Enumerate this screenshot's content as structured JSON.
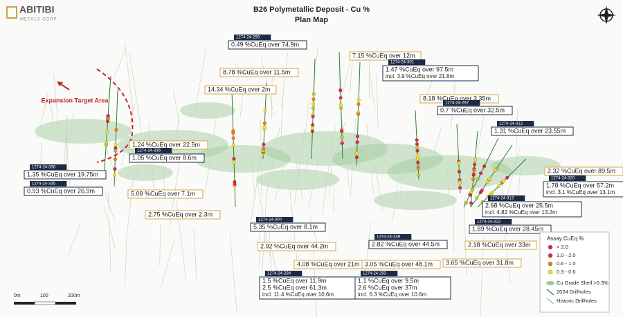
{
  "header": {
    "logo": "ABITIBI",
    "logo_sub": "METALS CORP",
    "title": "B26 Polymetallic Deposit - Cu %",
    "subtitle": "Plan Map"
  },
  "expansion_label": "Expansion Target Area",
  "callouts": [
    {
      "hole": "1274-24-299",
      "lines": [
        "0.49 %CuEq over 74.9m"
      ]
    },
    {
      "lines": [
        "8.78 %CuEq over 11.5m"
      ]
    },
    {
      "lines": [
        "14.34 %CuEq over 2m"
      ]
    },
    {
      "lines": [
        "7.15 %CuEq over 12m"
      ]
    },
    {
      "hole": "1274-24-301",
      "lines": [
        "1.47 %CuEq over 97.5m",
        "incl. 3.9 %CuEq over 21.8m"
      ]
    },
    {
      "lines": [
        "8.18 %CuEq over 3.35m"
      ]
    },
    {
      "hole": "1274-24-297",
      "lines": [
        "0.7 %CuEq over 32.5m"
      ]
    },
    {
      "hole": "1274-24-312",
      "lines": [
        "1.31 %CuEq over 23.55m"
      ]
    },
    {
      "lines": [
        "1.24 %CuEq over 22.5m"
      ]
    },
    {
      "hole": "1274-24-335",
      "lines": [
        "1.05 %CuEq over 8.6m"
      ]
    },
    {
      "hole": "1274-24-336",
      "lines": [
        "1.35 %CuEq over 19.75m"
      ]
    },
    {
      "hole": "1274-24-335",
      "lines": [
        "0.93 %CuEq over 26.9m"
      ]
    },
    {
      "lines": [
        "5.08 %CuEq over 7.1m"
      ]
    },
    {
      "lines": [
        "2.75 %CuEq over 2.3m"
      ]
    },
    {
      "lines": [
        "2.32 %CuEq over 89.5m"
      ]
    },
    {
      "hole": "1274-24-320",
      "lines": [
        "1.78 %CuEq over 57.2m",
        "incl. 3.1 %CuEq over 13.1m"
      ]
    },
    {
      "hole": "1274-24-313",
      "lines": [
        "2.68 %CuEq over 25.5m",
        "incl. 4.82 %CuEq over 13.2m"
      ]
    },
    {
      "hole": "1274-24-300",
      "lines": [
        "5.35 %CuEq over 8.1m"
      ]
    },
    {
      "lines": [
        "2.92 %CuEq over 44.2m"
      ]
    },
    {
      "hole": "1274-24-339",
      "lines": [
        "2.82 %CuEq over 44.5m"
      ]
    },
    {
      "hole": "1274-24-322",
      "lines": [
        "1.89 %CuEq over 28.45m"
      ]
    },
    {
      "lines": [
        "2.18 %CuEq over 33m"
      ]
    },
    {
      "lines": [
        "4.08 %CuEq over 21m"
      ]
    },
    {
      "lines": [
        "3.05 %CuEq over 48.1m"
      ]
    },
    {
      "lines": [
        "3.65 %CuEq over 31.8m"
      ]
    },
    {
      "hole": "1274-24-294",
      "lines": [
        "1.5 %CuEq over 11.9m",
        "2.5 %CuEq over 61.3m",
        "incl. 11.4 %CuEq over 10.6m"
      ]
    },
    {
      "hole": "1274-24-293",
      "lines": [
        "1.1 %CuEq over 9.5m",
        "2.6 %CuEq over 37m",
        "incl. 6.3 %CuEq over 10.6m"
      ]
    }
  ],
  "legend": {
    "title": "Assay CuEq %",
    "assay": [
      "> 2.0",
      "1.0 - 2.0",
      "0.6 - 1.0",
      "0.3 - 0.6"
    ],
    "items": [
      "Cu Grade Shell >0.3%",
      "2024 Drillholes",
      "Historic Drillholes"
    ]
  },
  "scale_bar": [
    "0m",
    "100",
    "200m"
  ]
}
